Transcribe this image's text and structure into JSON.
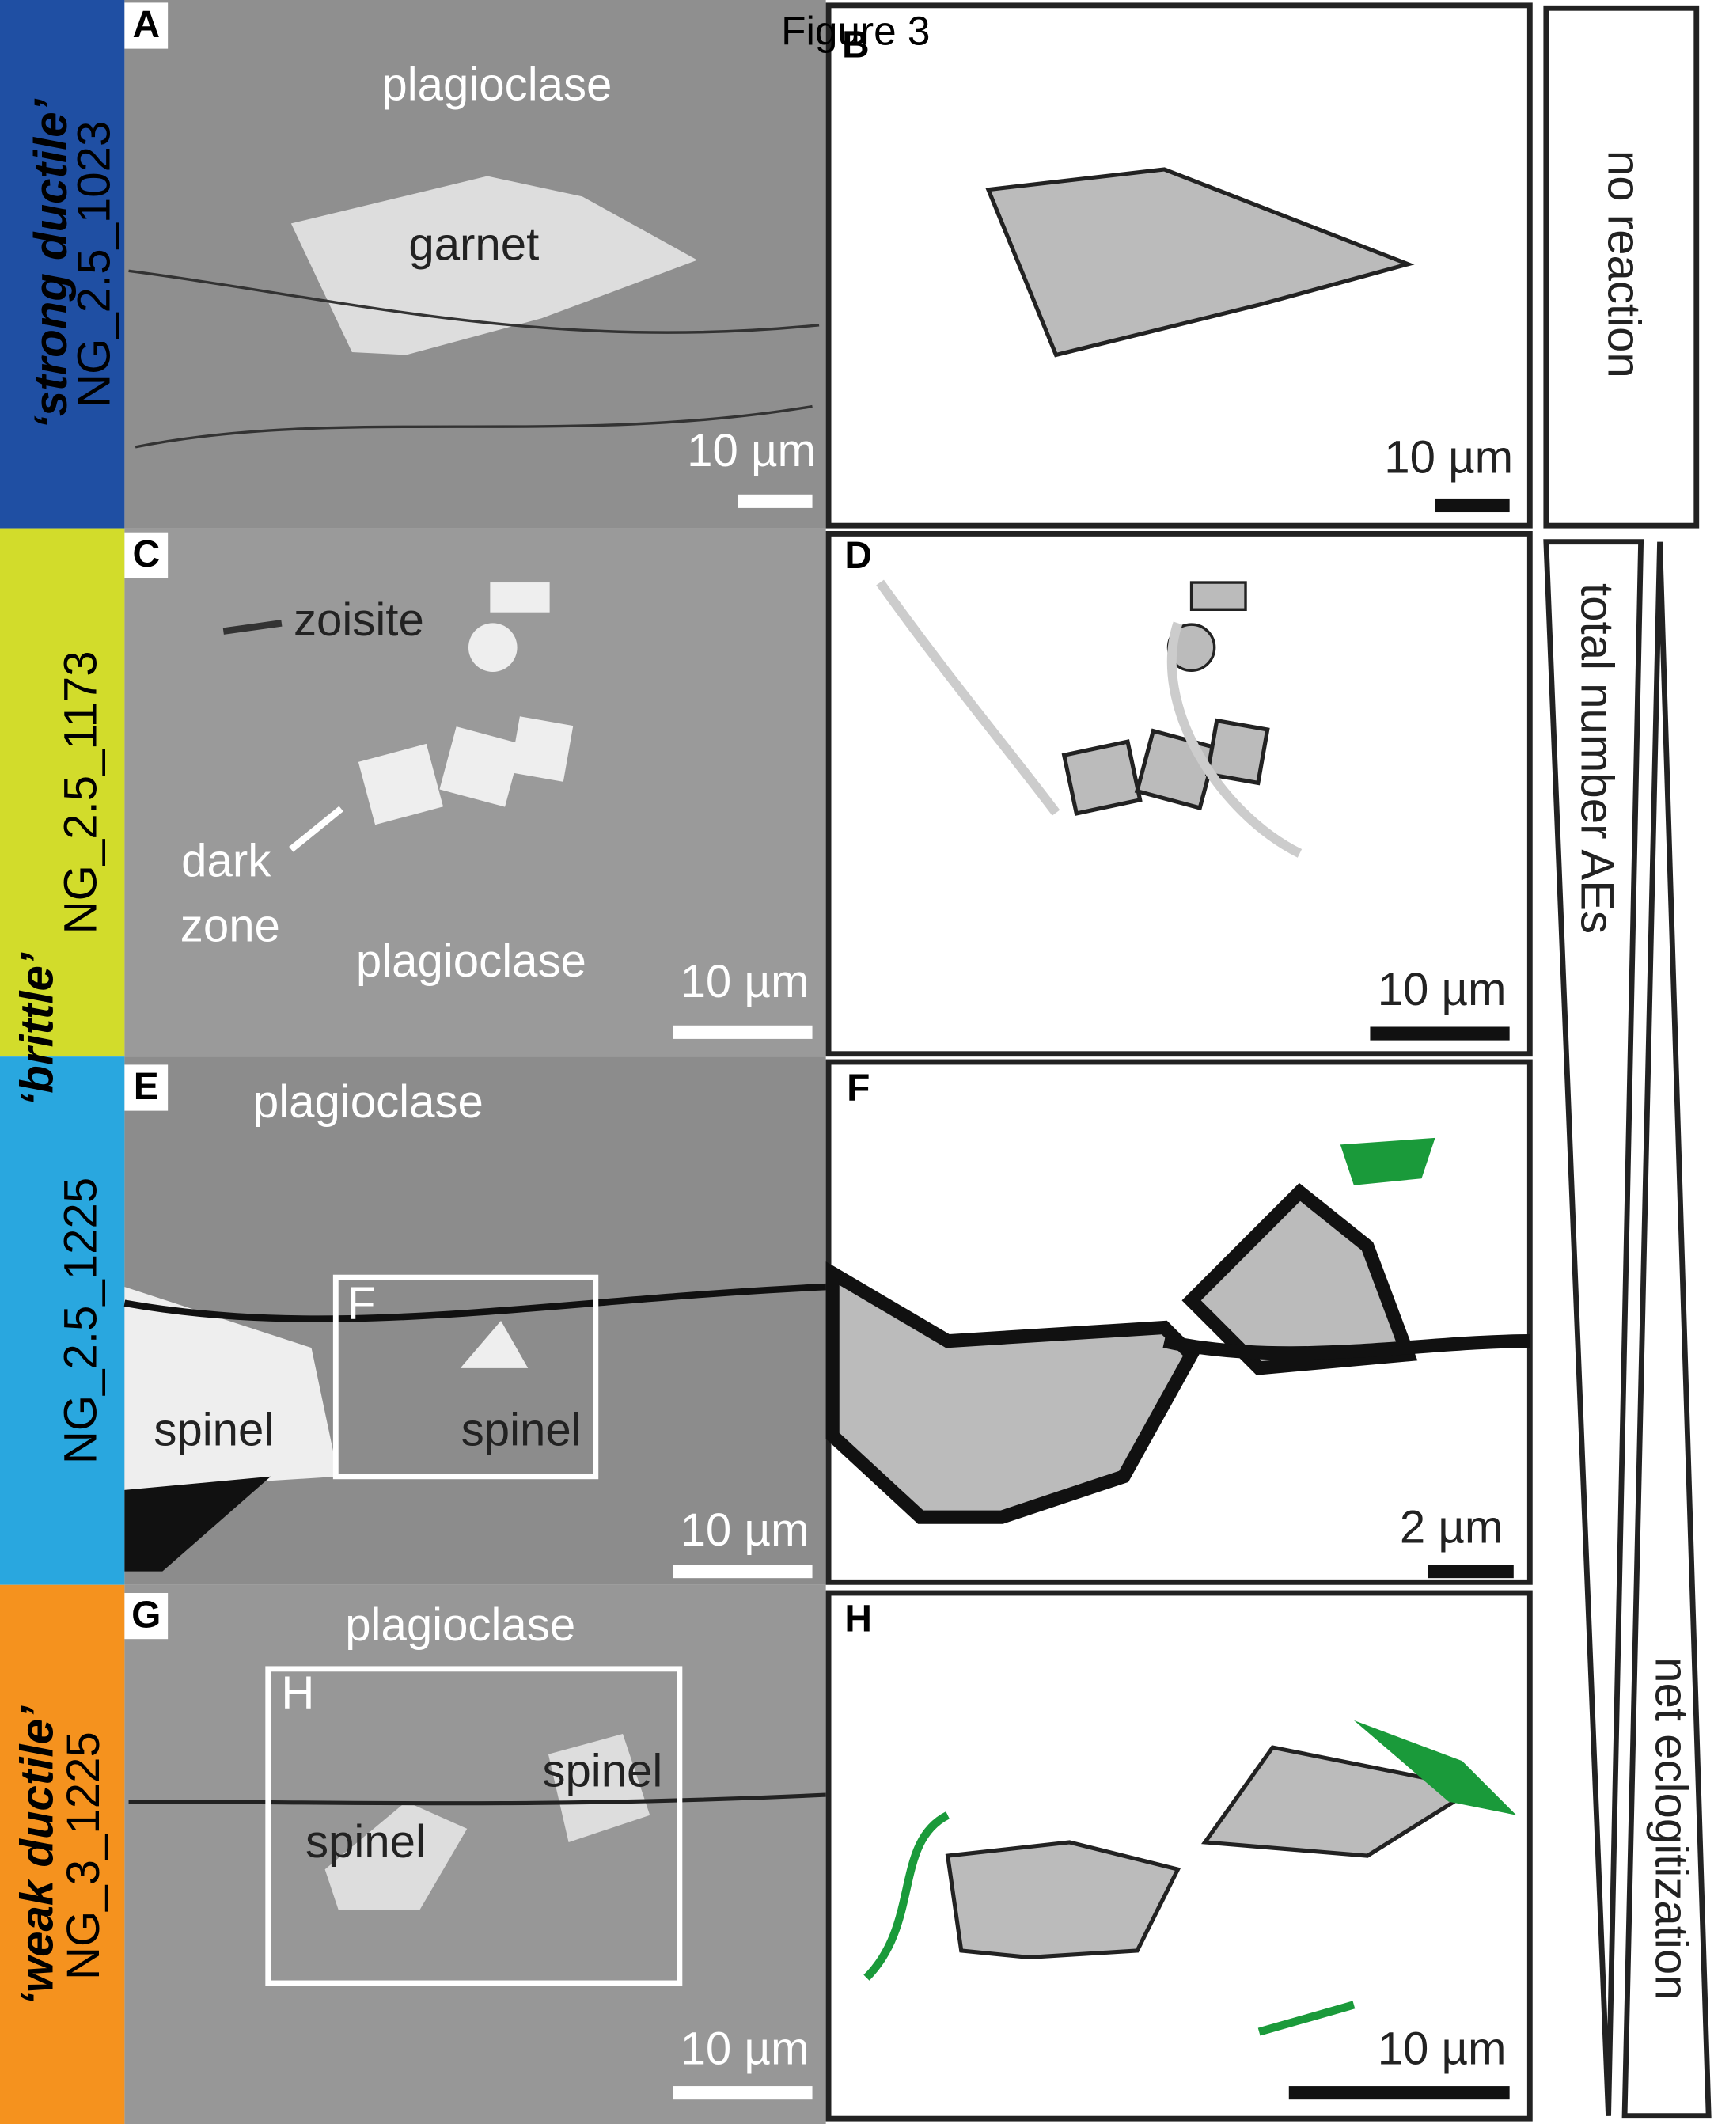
{
  "title": "Figure 3",
  "rows": [
    {
      "style": "‘strong ductile’",
      "sample": "NG_2.5_1023"
    },
    {
      "sample": "NG_2.5_1173"
    },
    {
      "sample": "NG_2.5_1225"
    },
    {
      "style": "‘weak ductile’",
      "sample": "NG_3_1225"
    }
  ],
  "brittle": "‘brittle’",
  "panels": {
    "A": {
      "letter": "A",
      "labels": [
        "plagioclase",
        "garnet"
      ],
      "scale": "10 µm"
    },
    "B": {
      "letter": "B",
      "scale": "10 µm"
    },
    "C": {
      "letter": "C",
      "labels": [
        "zoisite",
        "dark",
        "zone",
        "plagioclase"
      ],
      "scale": "10 µm"
    },
    "D": {
      "letter": "D",
      "scale": "10 µm"
    },
    "E": {
      "letter": "E",
      "labels": [
        "plagioclase",
        "F",
        "spinel",
        "spinel"
      ],
      "scale": "10 µm"
    },
    "F": {
      "letter": "F",
      "scale": "2 µm"
    },
    "G": {
      "letter": "G",
      "labels": [
        "plagioclase",
        "H",
        "spinel",
        "spinel"
      ],
      "scale": "10 µm"
    },
    "H": {
      "letter": "H",
      "scale": "10 µm"
    }
  },
  "legend": {
    "top": "no reaction",
    "left": "total number AEs",
    "right": "net eclogitization"
  }
}
